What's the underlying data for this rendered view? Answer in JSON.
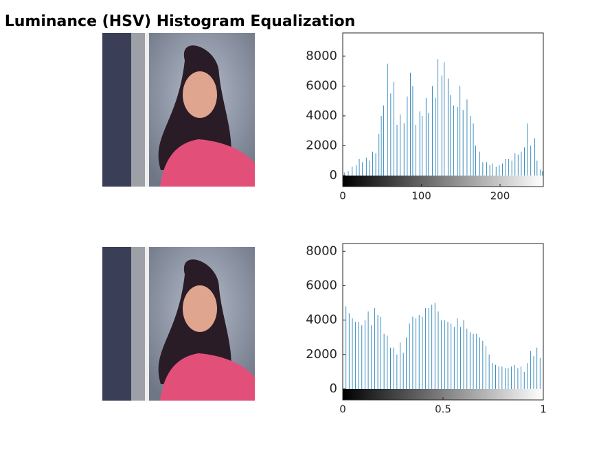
{
  "title": "Luminance (HSV) Histogram Equalization",
  "chart_data": [
    {
      "type": "stem",
      "color": "#3b8dbd",
      "x": [
        2,
        7,
        12,
        17,
        21,
        25,
        30,
        34,
        38,
        42,
        46,
        49,
        52,
        57,
        61,
        65,
        69,
        73,
        78,
        82,
        86,
        89,
        93,
        98,
        101,
        106,
        109,
        114,
        118,
        121,
        126,
        129,
        134,
        137,
        141,
        146,
        149,
        153,
        158,
        162,
        166,
        169,
        174,
        178,
        183,
        187,
        190,
        195,
        199,
        203,
        207,
        211,
        215,
        219,
        223,
        227,
        231,
        235,
        239,
        244,
        247,
        251,
        254
      ],
      "values": [
        200,
        300,
        600,
        700,
        1100,
        900,
        1200,
        1000,
        1600,
        1500,
        2800,
        4000,
        4700,
        7500,
        5500,
        6300,
        3400,
        4100,
        3500,
        5300,
        6900,
        6000,
        3400,
        4300,
        4000,
        5200,
        4200,
        6000,
        5200,
        7800,
        6700,
        7600,
        6500,
        5400,
        4700,
        4600,
        6000,
        4400,
        5100,
        4000,
        3500,
        2000,
        1600,
        900,
        900,
        700,
        800,
        600,
        700,
        800,
        1100,
        1100,
        1000,
        1500,
        1400,
        1600,
        1900,
        3500,
        2000,
        2500,
        1000,
        400,
        300
      ],
      "xlim": [
        0,
        255
      ],
      "xticks": [
        0,
        100,
        200
      ],
      "ylim": [
        -740,
        9560
      ],
      "yticks": [
        0,
        2000,
        4000,
        6000,
        8000
      ]
    },
    {
      "type": "stem",
      "color": "#3b8dbd",
      "x": [
        0,
        0.016,
        0.032,
        0.048,
        0.063,
        0.079,
        0.095,
        0.111,
        0.127,
        0.143,
        0.159,
        0.175,
        0.19,
        0.206,
        0.222,
        0.238,
        0.254,
        0.27,
        0.286,
        0.302,
        0.317,
        0.333,
        0.349,
        0.365,
        0.381,
        0.397,
        0.413,
        0.429,
        0.444,
        0.46,
        0.476,
        0.492,
        0.508,
        0.524,
        0.54,
        0.556,
        0.571,
        0.587,
        0.603,
        0.619,
        0.635,
        0.651,
        0.667,
        0.683,
        0.698,
        0.714,
        0.73,
        0.746,
        0.762,
        0.778,
        0.794,
        0.81,
        0.825,
        0.841,
        0.857,
        0.873,
        0.889,
        0.905,
        0.921,
        0.937,
        0.952,
        0.968,
        0.984,
        1
      ],
      "values": [
        4800,
        4800,
        4400,
        4100,
        3900,
        3900,
        3700,
        4000,
        4500,
        3700,
        4700,
        4300,
        4200,
        3200,
        3100,
        2400,
        2400,
        2000,
        2700,
        2100,
        3000,
        3800,
        4200,
        4100,
        4300,
        4200,
        4700,
        4700,
        4900,
        5000,
        4500,
        4000,
        4000,
        3900,
        3800,
        3600,
        4100,
        3600,
        4000,
        3500,
        3300,
        3200,
        3200,
        3000,
        2800,
        2500,
        2000,
        1500,
        1400,
        1300,
        1300,
        1200,
        1200,
        1300,
        1400,
        1200,
        1300,
        1000,
        1500,
        2200,
        1900,
        2400,
        1800,
        1000
      ],
      "xlim": [
        0,
        1
      ],
      "xticks": [
        0,
        0.5,
        1
      ],
      "ylim": [
        -640,
        8450
      ],
      "yticks": [
        0,
        2000,
        4000,
        6000,
        8000
      ]
    }
  ]
}
